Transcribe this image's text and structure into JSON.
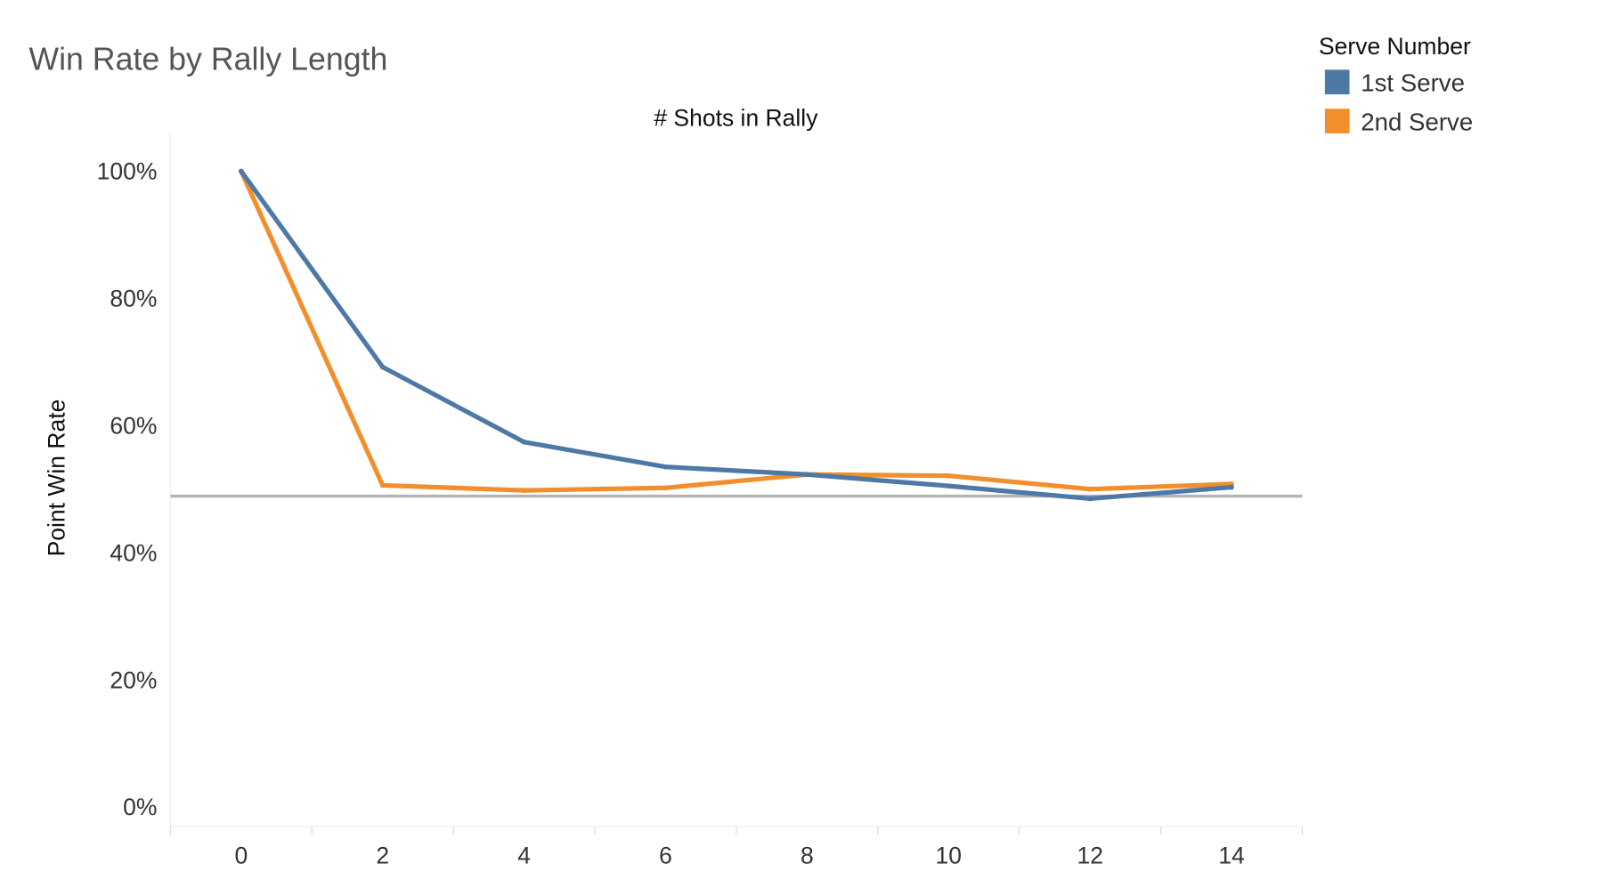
{
  "chart_data": {
    "type": "line",
    "title": "Win Rate by Rally Length",
    "xlabel": "# Shots in Rally",
    "ylabel": "Point Win Rate",
    "x": [
      0,
      2,
      4,
      6,
      8,
      10,
      12,
      14
    ],
    "xlim": [
      -1,
      15
    ],
    "ylim": [
      0,
      100
    ],
    "xticks": [
      "0",
      "2",
      "4",
      "6",
      "8",
      "10",
      "12",
      "14"
    ],
    "yticks": [
      {
        "value": 100,
        "label": "100%"
      },
      {
        "value": 80,
        "label": "80%"
      },
      {
        "value": 60,
        "label": "60%"
      },
      {
        "value": 40,
        "label": "40%"
      },
      {
        "value": 20,
        "label": "20%"
      },
      {
        "value": 0,
        "label": "0%"
      }
    ],
    "reference_line": 48.9,
    "grid": false,
    "legend": {
      "title": "Serve Number",
      "placement": "top-right"
    },
    "series": [
      {
        "name": "1st Serve",
        "color": "#4e79a7",
        "values": [
          100,
          69.2,
          57.4,
          53.5,
          52.3,
          50.5,
          48.5,
          50.3
        ]
      },
      {
        "name": "2nd Serve",
        "color": "#f28e2b",
        "values": [
          100,
          50.6,
          49.8,
          50.2,
          52.3,
          52.1,
          50.0,
          50.8
        ]
      }
    ]
  }
}
